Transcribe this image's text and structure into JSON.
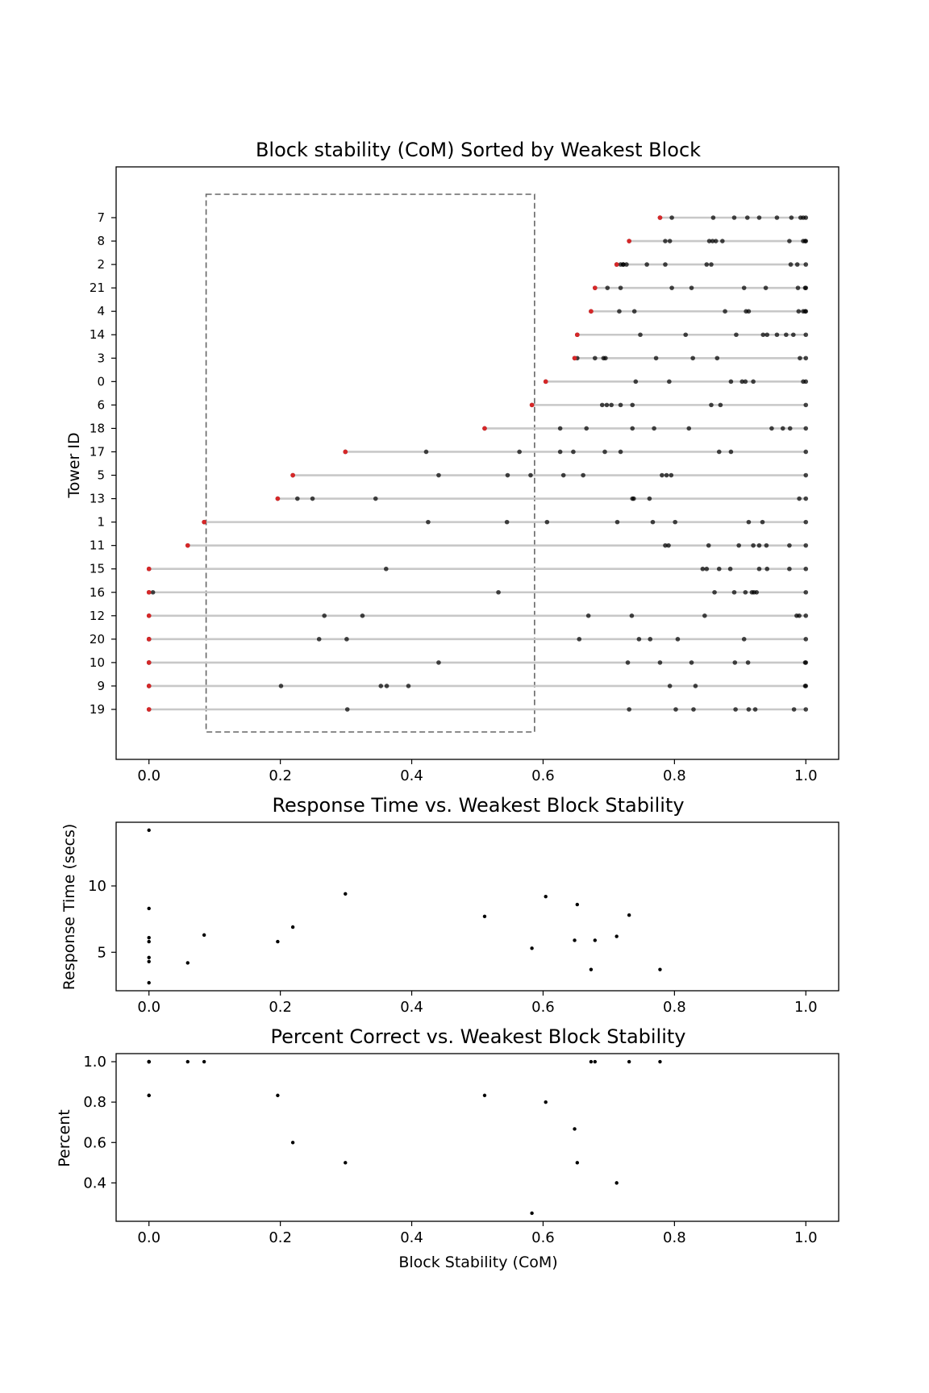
{
  "chart_data": [
    {
      "type": "scatter",
      "title": "Block stability (CoM) Sorted by Weakest Block",
      "xlabel": "",
      "ylabel": "Tower ID",
      "xlim": [
        -0.05,
        1.05
      ],
      "xticks": [
        "0.0",
        "0.2",
        "0.4",
        "0.6",
        "0.8",
        "1.0"
      ],
      "grid": false,
      "colors": {
        "weakest": "#d62728",
        "block": "#000000",
        "line": "#c8c8c8",
        "box": "#666666"
      },
      "highlight_box": {
        "x": [
          0.087,
          0.587
        ]
      },
      "towers": [
        {
          "id": "7",
          "weakest": 0.778,
          "blocks": [
            0.778,
            0.796,
            0.859,
            0.891,
            0.911,
            0.929,
            0.956,
            0.978,
            0.992,
            0.996,
            1.0
          ]
        },
        {
          "id": "8",
          "weakest": 0.731,
          "blocks": [
            0.731,
            0.786,
            0.793,
            0.853,
            0.858,
            0.863,
            0.873,
            0.975,
            0.996,
            0.999,
            1.0
          ]
        },
        {
          "id": "2",
          "weakest": 0.712,
          "blocks": [
            0.712,
            0.718,
            0.722,
            0.722,
            0.727,
            0.758,
            0.786,
            0.849,
            0.856,
            0.977,
            0.987,
            1.0
          ]
        },
        {
          "id": "21",
          "weakest": 0.679,
          "blocks": [
            0.679,
            0.698,
            0.718,
            0.796,
            0.826,
            0.906,
            0.939,
            0.988,
            0.999,
            1.0
          ]
        },
        {
          "id": "4",
          "weakest": 0.673,
          "blocks": [
            0.673,
            0.716,
            0.739,
            0.877,
            0.909,
            0.913,
            0.989,
            0.996,
            0.999,
            1.0
          ]
        },
        {
          "id": "14",
          "weakest": 0.652,
          "blocks": [
            0.652,
            0.748,
            0.817,
            0.894,
            0.935,
            0.941,
            0.956,
            0.97,
            0.981,
            1.0
          ]
        },
        {
          "id": "3",
          "weakest": 0.648,
          "blocks": [
            0.648,
            0.652,
            0.679,
            0.692,
            0.695,
            0.772,
            0.828,
            0.865,
            0.991,
            1.0
          ]
        },
        {
          "id": "0",
          "weakest": 0.604,
          "blocks": [
            0.604,
            0.741,
            0.792,
            0.886,
            0.903,
            0.908,
            0.92,
            0.996,
            1.0
          ]
        },
        {
          "id": "6",
          "weakest": 0.583,
          "blocks": [
            0.583,
            0.69,
            0.697,
            0.704,
            0.718,
            0.736,
            0.856,
            0.87,
            1.0
          ]
        },
        {
          "id": "18",
          "weakest": 0.511,
          "blocks": [
            0.511,
            0.626,
            0.666,
            0.736,
            0.769,
            0.822,
            0.948,
            0.965,
            0.976,
            1.0
          ]
        },
        {
          "id": "17",
          "weakest": 0.299,
          "blocks": [
            0.299,
            0.422,
            0.564,
            0.626,
            0.646,
            0.694,
            0.718,
            0.868,
            0.886,
            1.0
          ]
        },
        {
          "id": "5",
          "weakest": 0.219,
          "blocks": [
            0.219,
            0.441,
            0.546,
            0.581,
            0.631,
            0.661,
            0.781,
            0.788,
            0.795,
            1.0
          ]
        },
        {
          "id": "13",
          "weakest": 0.196,
          "blocks": [
            0.196,
            0.226,
            0.249,
            0.345,
            0.736,
            0.738,
            0.762,
            0.99,
            1.0
          ]
        },
        {
          "id": "1",
          "weakest": 0.084,
          "blocks": [
            0.084,
            0.425,
            0.545,
            0.606,
            0.713,
            0.767,
            0.801,
            0.913,
            0.934,
            1.0
          ]
        },
        {
          "id": "11",
          "weakest": 0.059,
          "blocks": [
            0.059,
            0.786,
            0.791,
            0.852,
            0.898,
            0.92,
            0.929,
            0.94,
            0.975,
            1.0
          ]
        },
        {
          "id": "15",
          "weakest": 0.0,
          "blocks": [
            0.0,
            0.361,
            0.843,
            0.849,
            0.868,
            0.885,
            0.929,
            0.941,
            0.975,
            1.0
          ]
        },
        {
          "id": "16",
          "weakest": 0.0,
          "blocks": [
            0.0,
            0.006,
            0.532,
            0.861,
            0.891,
            0.908,
            0.918,
            0.921,
            0.925,
            1.0
          ]
        },
        {
          "id": "12",
          "weakest": 0.0,
          "blocks": [
            0.0,
            0.267,
            0.325,
            0.669,
            0.735,
            0.846,
            0.986,
            0.99,
            1.0
          ]
        },
        {
          "id": "20",
          "weakest": 0.0,
          "blocks": [
            0.0,
            0.0,
            0.259,
            0.301,
            0.655,
            0.746,
            0.763,
            0.805,
            0.906,
            1.0
          ]
        },
        {
          "id": "10",
          "weakest": 0.0,
          "blocks": [
            0.0,
            0.0,
            0.441,
            0.729,
            0.778,
            0.826,
            0.892,
            0.912,
            0.999,
            1.0
          ]
        },
        {
          "id": "9",
          "weakest": 0.0,
          "blocks": [
            0.0,
            0.0,
            0.201,
            0.353,
            0.362,
            0.395,
            0.793,
            0.832,
            0.999,
            1.0
          ]
        },
        {
          "id": "19",
          "weakest": 0.0,
          "blocks": [
            0.0,
            0.302,
            0.731,
            0.802,
            0.829,
            0.893,
            0.913,
            0.923,
            0.982,
            1.0
          ]
        }
      ]
    },
    {
      "type": "scatter",
      "title": "Response Time vs. Weakest Block Stability",
      "xlabel": "",
      "ylabel": "Response Time (secs)",
      "xlim": [
        -0.05,
        1.05
      ],
      "ylim": [
        2.1,
        14.8
      ],
      "xticks": [
        "0.0",
        "0.2",
        "0.4",
        "0.6",
        "0.8",
        "1.0"
      ],
      "yticks": [
        {
          "value": 5,
          "label": "5"
        },
        {
          "value": 10,
          "label": "10"
        }
      ],
      "grid": false,
      "points": [
        {
          "x": 0.0,
          "y": 14.2
        },
        {
          "x": 0.0,
          "y": 8.3
        },
        {
          "x": 0.0,
          "y": 6.1
        },
        {
          "x": 0.0,
          "y": 5.8
        },
        {
          "x": 0.0,
          "y": 4.6
        },
        {
          "x": 0.0,
          "y": 4.3
        },
        {
          "x": 0.0,
          "y": 2.7
        },
        {
          "x": 0.059,
          "y": 4.2
        },
        {
          "x": 0.084,
          "y": 6.3
        },
        {
          "x": 0.196,
          "y": 5.8
        },
        {
          "x": 0.219,
          "y": 6.9
        },
        {
          "x": 0.299,
          "y": 9.4
        },
        {
          "x": 0.511,
          "y": 7.7
        },
        {
          "x": 0.583,
          "y": 5.3
        },
        {
          "x": 0.604,
          "y": 9.2
        },
        {
          "x": 0.648,
          "y": 5.9
        },
        {
          "x": 0.652,
          "y": 8.6
        },
        {
          "x": 0.673,
          "y": 3.7
        },
        {
          "x": 0.679,
          "y": 5.9
        },
        {
          "x": 0.712,
          "y": 6.2
        },
        {
          "x": 0.731,
          "y": 7.8
        },
        {
          "x": 0.778,
          "y": 3.7
        }
      ]
    },
    {
      "type": "scatter",
      "title": "Percent Correct vs. Weakest Block Stability",
      "xlabel": "Block Stability (CoM)",
      "ylabel": "Percent",
      "xlim": [
        -0.05,
        1.05
      ],
      "ylim": [
        0.21,
        1.04
      ],
      "xticks": [
        "0.0",
        "0.2",
        "0.4",
        "0.6",
        "0.8",
        "1.0"
      ],
      "yticks": [
        {
          "value": 0.4,
          "label": "0.4"
        },
        {
          "value": 0.6,
          "label": "0.6"
        },
        {
          "value": 0.8,
          "label": "0.8"
        },
        {
          "value": 1.0,
          "label": "1.0"
        }
      ],
      "grid": false,
      "points": [
        {
          "x": 0.0,
          "y": 1.0
        },
        {
          "x": 0.0,
          "y": 1.0
        },
        {
          "x": 0.0,
          "y": 1.0
        },
        {
          "x": 0.0,
          "y": 1.0
        },
        {
          "x": 0.0,
          "y": 1.0
        },
        {
          "x": 0.0,
          "y": 0.833
        },
        {
          "x": 0.0,
          "y": 0.833
        },
        {
          "x": 0.059,
          "y": 1.0
        },
        {
          "x": 0.084,
          "y": 1.0
        },
        {
          "x": 0.196,
          "y": 0.833
        },
        {
          "x": 0.219,
          "y": 0.6
        },
        {
          "x": 0.299,
          "y": 0.5
        },
        {
          "x": 0.511,
          "y": 0.833
        },
        {
          "x": 0.583,
          "y": 0.25
        },
        {
          "x": 0.604,
          "y": 0.8
        },
        {
          "x": 0.648,
          "y": 0.667
        },
        {
          "x": 0.652,
          "y": 0.5
        },
        {
          "x": 0.673,
          "y": 1.0
        },
        {
          "x": 0.679,
          "y": 1.0
        },
        {
          "x": 0.712,
          "y": 0.4
        },
        {
          "x": 0.731,
          "y": 1.0
        },
        {
          "x": 0.778,
          "y": 1.0
        }
      ]
    }
  ]
}
